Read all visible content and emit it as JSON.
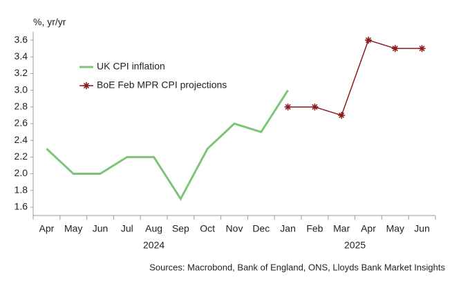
{
  "chart_data": {
    "type": "line",
    "y_label": "%, yr/yr",
    "source": "Sources: Macrobond, Bank of England, ONS, Lloyds Bank Market Insights",
    "categories": [
      "Apr",
      "May",
      "Jun",
      "Jul",
      "Aug",
      "Sep",
      "Oct",
      "Nov",
      "Dec",
      "Jan",
      "Feb",
      "Mar",
      "Apr",
      "May",
      "Jun"
    ],
    "x_groups": [
      {
        "label": "2024",
        "span": 9
      },
      {
        "label": "2025",
        "span": 6
      }
    ],
    "series": [
      {
        "name": "UK CPI inflation",
        "color": "#7cc576",
        "marker": "none",
        "values": [
          2.3,
          2.0,
          2.0,
          2.2,
          2.2,
          1.7,
          2.3,
          2.6,
          2.5,
          3.0,
          null,
          null,
          null,
          null,
          null
        ]
      },
      {
        "name": "BoE Feb MPR CPI projections",
        "color": "#8b1a1a",
        "marker": "star",
        "values": [
          null,
          null,
          null,
          null,
          null,
          null,
          null,
          null,
          null,
          2.8,
          2.8,
          2.7,
          3.6,
          3.5,
          3.5
        ]
      }
    ],
    "ylim": [
      1.5,
      3.7
    ],
    "yticks": [
      1.6,
      1.8,
      {
        "value": 2.0,
        "label": "2.0"
      },
      2.2,
      2.4,
      2.6,
      2.8,
      {
        "value": 3.0,
        "label": "3.0"
      },
      3.2,
      3.4,
      3.6
    ],
    "grid": false,
    "legend": "top-left"
  }
}
